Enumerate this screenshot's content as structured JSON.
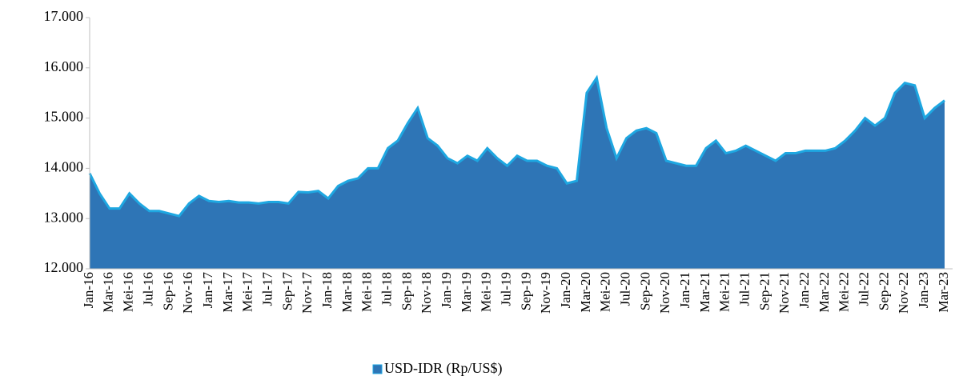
{
  "chart_data": {
    "type": "area",
    "categories": [
      "Jan-16",
      null,
      "Mar-16",
      null,
      "Mei-16",
      null,
      "Jul-16",
      null,
      "Sep-16",
      null,
      "Nov-16",
      null,
      "Jan-17",
      null,
      "Mar-17",
      null,
      "Mei-17",
      null,
      "Jul-17",
      null,
      "Sep-17",
      null,
      "Nov-17",
      null,
      "Jan-18",
      null,
      "Mar-18",
      null,
      "Mei-18",
      null,
      "Jul-18",
      null,
      "Sep-18",
      null,
      "Nov-18",
      null,
      "Jan-19",
      null,
      "Mar-19",
      null,
      "Mei-19",
      null,
      "Jul-19",
      null,
      "Sep-19",
      null,
      "Nov-19",
      null,
      "Jan-20",
      null,
      "Mar-20",
      null,
      "Mei-20",
      null,
      "Jul-20",
      null,
      "Sep-20",
      null,
      "Nov-20",
      null,
      "Jan-21",
      null,
      "Mar-21",
      null,
      "Mei-21",
      null,
      "Jul-21",
      null,
      "Sep-21",
      null,
      "Nov-21",
      null,
      "Jan-22",
      null,
      "Mar-22",
      null,
      "Mei-22",
      null,
      "Jul-22",
      null,
      "Sep-22",
      null,
      "Nov-22",
      null,
      "Jan-23",
      null,
      "Mar-23"
    ],
    "series": [
      {
        "name": "USD-IDR (Rp/US$)",
        "color": "#2e75b6",
        "values": [
          13900,
          13500,
          13200,
          13200,
          13500,
          13300,
          13150,
          13150,
          13100,
          13050,
          13300,
          13450,
          13350,
          13330,
          13350,
          13320,
          13320,
          13300,
          13330,
          13330,
          13300,
          13530,
          13520,
          13550,
          13400,
          13650,
          13750,
          13800,
          14000,
          14000,
          14400,
          14550,
          14900,
          15200,
          14600,
          14450,
          14200,
          14100,
          14250,
          14150,
          14400,
          14200,
          14050,
          14250,
          14150,
          14150,
          14050,
          14000,
          13700,
          13750,
          15500,
          15800,
          14800,
          14200,
          14600,
          14750,
          14800,
          14700,
          14150,
          14100,
          14050,
          14050,
          14400,
          14550,
          14300,
          14350,
          14450,
          14350,
          14250,
          14150,
          14300,
          14300,
          14350,
          14350,
          14350,
          14400,
          14550,
          14750,
          15000,
          14850,
          15000,
          15500,
          15700,
          15650,
          15000,
          15200,
          15350
        ]
      }
    ],
    "ylim": [
      12000,
      17000
    ],
    "yticks": [
      {
        "value": 12000,
        "label": "12.000"
      },
      {
        "value": 13000,
        "label": "13.000"
      },
      {
        "value": 14000,
        "label": "14.000"
      },
      {
        "value": 15000,
        "label": "15.000"
      },
      {
        "value": 16000,
        "label": "16.000"
      },
      {
        "value": 17000,
        "label": "17.000"
      }
    ],
    "edge_color": "#1ea7e1",
    "legend": "bottom"
  }
}
